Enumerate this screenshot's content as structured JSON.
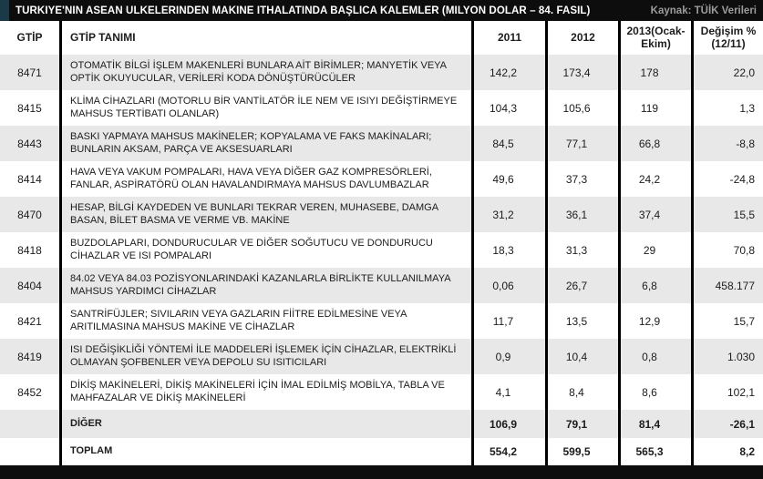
{
  "header": {
    "title": "TÜRKİYE'NİN ASEAN ÜLKELERİNDEN MAKİNE İTHALATINDA BAŞLICA KALEMLER (MİLYON DOLAR – 84. FASIL)",
    "source": "Kaynak: TÜİK Verileri"
  },
  "chart_data": {
    "type": "table",
    "title": "TÜRKİYE'NİN ASEAN ÜLKELERİNDEN MAKİNE İTHALATINDA BAŞLICA KALEMLER (MİLYON DOLAR – 84. FASIL)",
    "source": "Kaynak: TÜİK Verileri",
    "columns": [
      "GTİP",
      "GTİP TANIMI",
      "2011",
      "2012",
      "2013(Ocak-Ekim)",
      "Değişim % (12/11)"
    ],
    "rows": [
      {
        "kind": "data",
        "bold": false,
        "gtip": "8471",
        "tanim": "OTOMATİK BİLGİ İŞLEM MAKENLERİ BUNLARA AİT BİRİMLER; MANYETİK VEYA OPTİK OKUYUCULAR, VERİLERİ KODA DÖNÜŞTÜRÜCÜLER",
        "y2011": "142,2",
        "y2012": "173,4",
        "y2013": "178",
        "degisim": "22,0"
      },
      {
        "kind": "data",
        "bold": false,
        "gtip": "8415",
        "tanim": "KLİMA CİHAZLARI (MOTORLU BİR VANTİLATÖR İLE NEM VE ISIYI DEĞİŞTİRMEYE MAHSUS TERTİBATI OLANLAR)",
        "y2011": "104,3",
        "y2012": "105,6",
        "y2013": "119",
        "degisim": "1,3"
      },
      {
        "kind": "data",
        "bold": false,
        "gtip": "8443",
        "tanim": "BASKI YAPMAYA MAHSUS MAKİNELER; KOPYALAMA VE FAKS MAKİNALARI; BUNLARIN AKSAM, PARÇA VE AKSESUARLARI",
        "y2011": "84,5",
        "y2012": "77,1",
        "y2013": "66,8",
        "degisim": "-8,8"
      },
      {
        "kind": "data",
        "bold": false,
        "gtip": "8414",
        "tanim": "HAVA VEYA VAKUM POMPALARI, HAVA VEYA DİĞER GAZ KOMPRESÖRLERİ, FANLAR, ASPİRATÖRÜ OLAN HAVALANDIRMAYA MAHSUS DAVLUMBAZLAR",
        "y2011": "49,6",
        "y2012": "37,3",
        "y2013": "24,2",
        "degisim": "-24,8"
      },
      {
        "kind": "data",
        "bold": false,
        "gtip": "8470",
        "tanim": "HESAP, BİLGİ KAYDEDEN VE BUNLARI TEKRAR VEREN, MUHASEBE, DAMGA BASAN, BİLET BASMA VE VERME VB. MAKİNE",
        "y2011": "31,2",
        "y2012": "36,1",
        "y2013": "37,4",
        "degisim": "15,5"
      },
      {
        "kind": "data",
        "bold": false,
        "gtip": "8418",
        "tanim": "BUZDOLAPLARI, DONDURUCULAR VE DİĞER SOĞUTUCU VE DONDURUCU CİHAZLAR VE ISI POMPALARI",
        "y2011": "18,3",
        "y2012": "31,3",
        "y2013": "29",
        "degisim": "70,8"
      },
      {
        "kind": "data",
        "bold": false,
        "gtip": "8404",
        "tanim": "84.02 VEYA 84.03 POZİSYONLARINDAKİ KAZANLARLA BİRLİKTE KULLANILMAYA MAHSUS YARDIMCI CİHAZLAR",
        "y2011": "0,06",
        "y2012": "26,7",
        "y2013": "6,8",
        "degisim": "458.177"
      },
      {
        "kind": "data",
        "bold": false,
        "gtip": "8421",
        "tanim": "SANTRİFÜJLER; SIVILARIN VEYA GAZLARIN FİİTRE EDİLMESİNE VEYA ARITILMASINA MAHSUS MAKİNE VE CİHAZLAR",
        "y2011": "11,7",
        "y2012": "13,5",
        "y2013": "12,9",
        "degisim": "15,7"
      },
      {
        "kind": "data",
        "bold": false,
        "gtip": "8419",
        "tanim": "ISI DEĞİŞİKLİĞİ YÖNTEMİ İLE MADDELERİ İŞLEMEK İÇİN CİHAZLAR, ELEKTRİKLİ OLMAYAN ŞOFBENLER VEYA DEPOLU SU ISITICILARI",
        "y2011": "0,9",
        "y2012": "10,4",
        "y2013": "0,8",
        "degisim": "1.030"
      },
      {
        "kind": "data",
        "bold": false,
        "gtip": "8452",
        "tanim": "DİKİŞ MAKİNELERİ, DİKİŞ MAKİNELERİ İÇİN İMAL EDİLMİŞ MOBİLYA, TABLA VE MAHFAZALAR VE DİKİŞ MAKİNELERİ",
        "y2011": "4,1",
        "y2012": "8,4",
        "y2013": "8,6",
        "degisim": "102,1"
      },
      {
        "kind": "diger",
        "bold": true,
        "gtip": "",
        "tanim": "DİĞER",
        "y2011": "106,9",
        "y2012": "79,1",
        "y2013": "81,4",
        "degisim": "-26,1"
      },
      {
        "kind": "toplam",
        "bold": true,
        "gtip": "",
        "tanim": "TOPLAM",
        "y2011": "554,2",
        "y2012": "599,5",
        "y2013": "565,3",
        "degisim": "8,2"
      }
    ]
  },
  "colors": {
    "title_bar": "#0d0d0d",
    "accent_mark": "#1b3a49",
    "row_alt": "#e8e8e8",
    "source_text": "#9c9c9c",
    "bottom_bar": "#0d0d0d"
  }
}
